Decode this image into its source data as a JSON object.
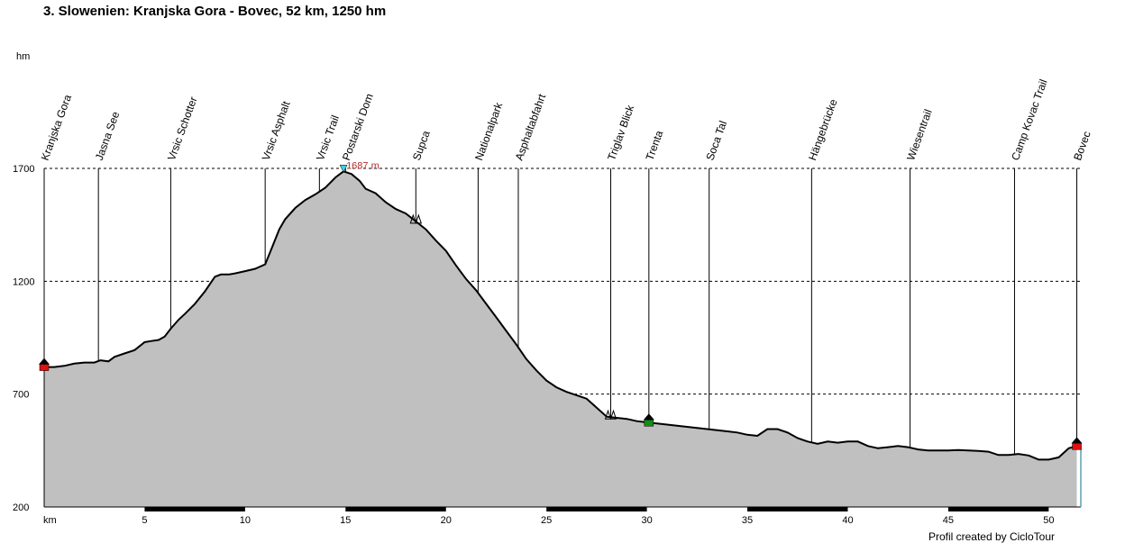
{
  "chart_data": {
    "type": "area",
    "title": "3. Slowenien: Kranjska Gora - Bovec, 52 km, 1250 hm",
    "xlabel": "km",
    "ylabel": "hm",
    "xlim": [
      0,
      51.6
    ],
    "ylim": [
      200,
      1700
    ],
    "x_ticks": [
      5,
      10,
      15,
      20,
      25,
      30,
      35,
      40,
      45,
      50
    ],
    "y_ticks": [
      200,
      700,
      1200,
      1700
    ],
    "grid": true,
    "max_label": "1687 m",
    "max_point": {
      "x": 14.9,
      "y": 1687
    },
    "credit": "Profil created by CicloTour",
    "waypoints": [
      {
        "km": 0.0,
        "name": "Kranjska Gora"
      },
      {
        "km": 2.7,
        "name": "Jasna See"
      },
      {
        "km": 6.3,
        "name": "Vrsic Schotter"
      },
      {
        "km": 11.0,
        "name": "Vrsic Asphalt"
      },
      {
        "km": 13.7,
        "name": "Vrsic Trail"
      },
      {
        "km": 15.0,
        "name": "Postarski Dom"
      },
      {
        "km": 18.5,
        "name": "Supca"
      },
      {
        "km": 21.6,
        "name": "Nationalpark"
      },
      {
        "km": 23.6,
        "name": "Asphaltabfahrt"
      },
      {
        "km": 28.2,
        "name": "Triglav Blick"
      },
      {
        "km": 30.1,
        "name": "Trenta"
      },
      {
        "km": 33.1,
        "name": "Soca Tal"
      },
      {
        "km": 38.2,
        "name": "Hängebrücke"
      },
      {
        "km": 43.1,
        "name": "Wiesentrail"
      },
      {
        "km": 48.3,
        "name": "Camp Kovac Trail"
      },
      {
        "km": 51.4,
        "name": "Bovec"
      }
    ],
    "series": [
      {
        "x": [
          0.0,
          0.5,
          1.0,
          1.5,
          2.0,
          2.5,
          2.8,
          3.2,
          3.5,
          4.0,
          4.5,
          5.0,
          5.3,
          5.7,
          6.0,
          6.3,
          6.7,
          7.0,
          7.5,
          8.0,
          8.5,
          8.8,
          9.2,
          9.5,
          10.0,
          10.5,
          11.0,
          11.3,
          11.7,
          12.0,
          12.5,
          13.0,
          13.5,
          14.0,
          14.5,
          14.9,
          15.3,
          15.7,
          16.0,
          16.5,
          17.0,
          17.5,
          18.0,
          18.5,
          19.0,
          19.5,
          20.0,
          20.5,
          21.0,
          21.5,
          22.0,
          22.5,
          23.0,
          23.5,
          24.0,
          24.5,
          25.0,
          25.5,
          26.0,
          26.5,
          27.0,
          27.5,
          28.0,
          28.5,
          29.0,
          29.5,
          30.0,
          30.5,
          31.0,
          31.5,
          32.0,
          32.5,
          33.0,
          33.5,
          34.0,
          34.5,
          35.0,
          35.5,
          36.0,
          36.5,
          37.0,
          37.5,
          38.0,
          38.5,
          39.0,
          39.5,
          40.0,
          40.5,
          41.0,
          41.5,
          42.0,
          42.5,
          43.0,
          43.5,
          44.0,
          44.5,
          45.0,
          45.5,
          46.0,
          46.5,
          47.0,
          47.5,
          48.0,
          48.5,
          49.0,
          49.5,
          50.0,
          50.5,
          51.0,
          51.4
        ],
        "y": [
          820,
          820,
          825,
          835,
          840,
          840,
          850,
          845,
          865,
          880,
          895,
          930,
          935,
          940,
          955,
          990,
          1030,
          1055,
          1100,
          1155,
          1220,
          1230,
          1230,
          1235,
          1245,
          1255,
          1275,
          1340,
          1430,
          1475,
          1525,
          1560,
          1585,
          1615,
          1660,
          1687,
          1675,
          1645,
          1610,
          1590,
          1550,
          1520,
          1500,
          1465,
          1430,
          1380,
          1335,
          1270,
          1210,
          1160,
          1100,
          1040,
          980,
          920,
          855,
          805,
          760,
          730,
          710,
          695,
          680,
          640,
          600,
          595,
          590,
          580,
          575,
          570,
          565,
          560,
          555,
          550,
          545,
          540,
          535,
          530,
          520,
          515,
          545,
          545,
          530,
          505,
          490,
          480,
          490,
          485,
          490,
          490,
          470,
          460,
          465,
          470,
          465,
          455,
          450,
          450,
          450,
          452,
          450,
          448,
          445,
          430,
          430,
          435,
          428,
          410,
          410,
          420,
          460,
          470
        ]
      }
    ]
  }
}
